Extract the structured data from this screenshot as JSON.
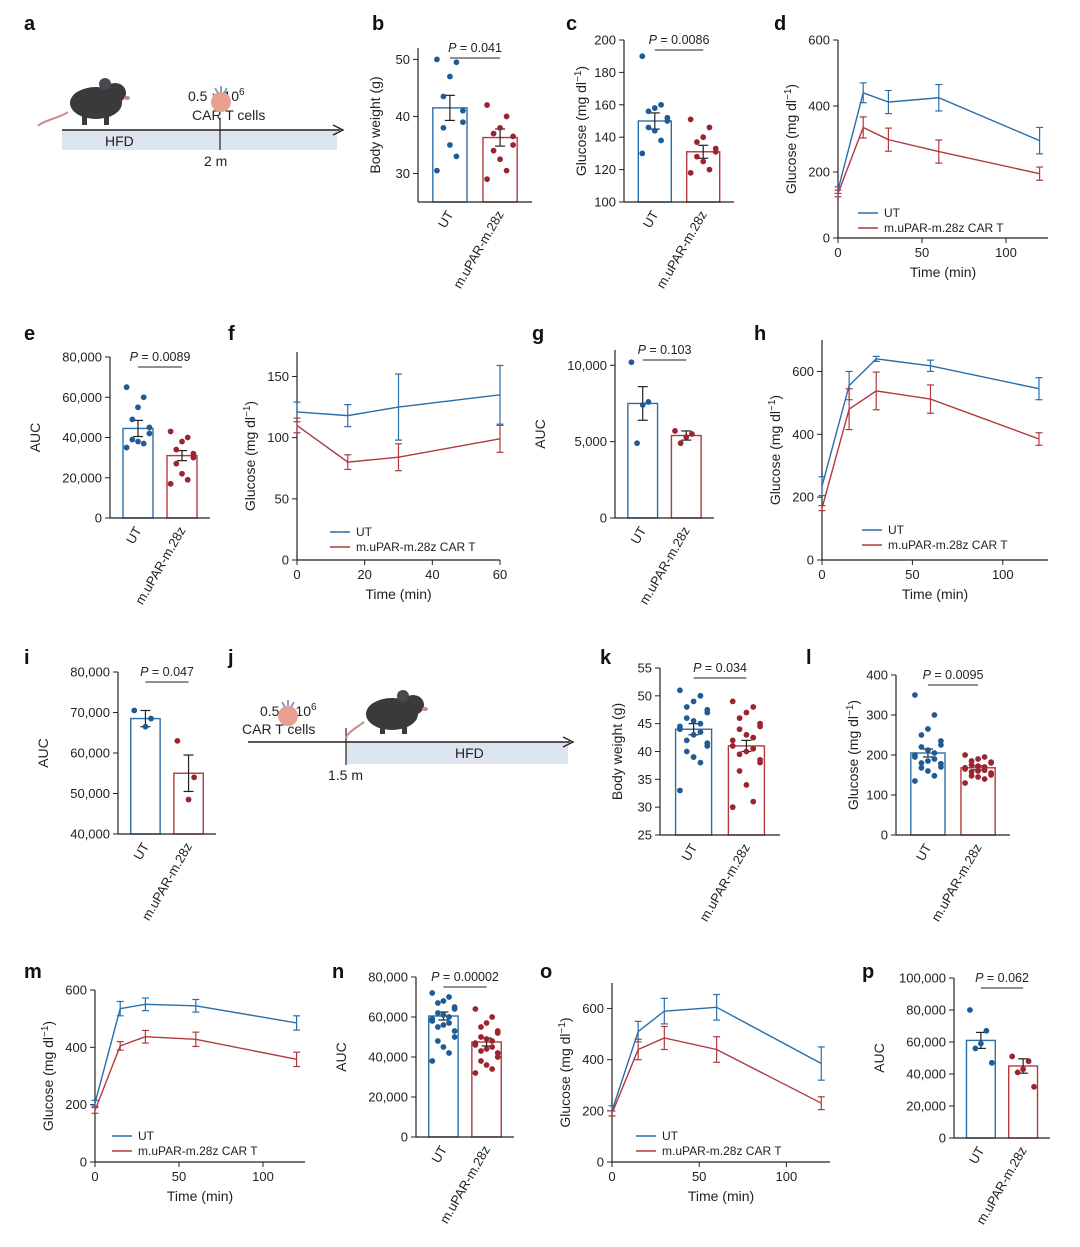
{
  "colors": {
    "ut": "#2a6ea9",
    "car": "#b13a3e",
    "ut_dot": "#1f5c96",
    "car_dot": "#9a2530",
    "band": "#dbe4ef",
    "text": "#222222"
  },
  "labels": {
    "a": "a",
    "b": "b",
    "c": "c",
    "d": "d",
    "e": "e",
    "f": "f",
    "g": "g",
    "h": "h",
    "i": "i",
    "j": "j",
    "k": "k",
    "l": "l",
    "m": "m",
    "n": "n",
    "o": "o",
    "p": "p"
  },
  "schematic_a": {
    "dose_base": "0.5 × 10",
    "dose_exp": "6",
    "cells": "CAR T cells",
    "diet": "HFD",
    "time": "2 m",
    "icons": [
      "mouse-icon",
      "car-t-cell-icon"
    ]
  },
  "schematic_j": {
    "dose_base": "0.5 × 10",
    "dose_exp": "6",
    "cells": "CAR T cells",
    "diet": "HFD",
    "time": "1.5 m",
    "icons": [
      "mouse-icon",
      "car-t-cell-icon"
    ]
  },
  "chart_data": [
    {
      "panel": "b",
      "type": "bar",
      "ylabel": "Body weight (g)",
      "ylim": [
        25,
        52
      ],
      "yticks": [
        30,
        40,
        50
      ],
      "categories": [
        "UT",
        "m.uPAR-m.28z"
      ],
      "values": [
        41.5,
        36.3
      ],
      "sem": [
        2.2,
        1.5
      ],
      "points": [
        [
          50,
          49.5,
          47,
          43.5,
          41,
          39,
          38,
          35,
          33,
          30.5
        ],
        [
          42,
          40,
          38,
          37,
          36.5,
          35,
          34,
          32.5,
          30.5,
          29
        ]
      ],
      "p_value": "P = 0.041"
    },
    {
      "panel": "c",
      "type": "bar",
      "ylabel": "Glucose (mg dl−1)",
      "ylim": [
        100,
        200
      ],
      "yticks": [
        100,
        120,
        140,
        160,
        180,
        200
      ],
      "categories": [
        "UT",
        "m.uPAR-m.28z"
      ],
      "values": [
        150,
        131
      ],
      "sem": [
        5,
        4
      ],
      "points": [
        [
          190,
          160,
          158,
          156,
          152,
          150,
          146,
          144,
          138,
          130
        ],
        [
          151,
          146,
          140,
          137,
          133,
          131,
          128,
          125,
          120,
          118
        ]
      ],
      "p_value": "P = 0.0086"
    },
    {
      "panel": "d",
      "type": "line",
      "xlabel": "Time (min)",
      "ylabel": "Glucose (mg dl−1)",
      "xlim": [
        0,
        125
      ],
      "ylim": [
        0,
        600
      ],
      "xticks": [
        0,
        50,
        100
      ],
      "yticks": [
        0,
        200,
        400,
        600
      ],
      "x": [
        0,
        15,
        30,
        60,
        120
      ],
      "series": [
        {
          "name": "UT",
          "values": [
            145,
            440,
            412,
            425,
            295
          ],
          "err": [
            10,
            30,
            35,
            40,
            40
          ]
        },
        {
          "name": "m.uPAR-m.28z CAR T",
          "values": [
            135,
            335,
            298,
            262,
            195
          ],
          "err": [
            10,
            32,
            35,
            35,
            20
          ]
        }
      ]
    },
    {
      "panel": "e",
      "type": "bar",
      "ylabel": "AUC",
      "ylim": [
        0,
        80000
      ],
      "yticks": [
        0,
        20000,
        40000,
        60000,
        80000
      ],
      "yticklabels": [
        "0",
        "20,000",
        "40,000",
        "60,000",
        "80,000"
      ],
      "categories": [
        "UT",
        "m.uPAR-m.28z"
      ],
      "values": [
        44500,
        31000
      ],
      "sem": [
        4000,
        2500
      ],
      "points": [
        [
          65000,
          60000,
          55000,
          49000,
          45000,
          42000,
          39000,
          38000,
          37000,
          35000
        ],
        [
          43000,
          40000,
          38000,
          34000,
          32000,
          30000,
          27000,
          22000,
          19000,
          17000
        ]
      ],
      "p_value": "P = 0.0089"
    },
    {
      "panel": "f",
      "type": "line",
      "xlabel": "Time (min)",
      "ylabel": "Glucose (mg dl−1)",
      "xlim": [
        0,
        60
      ],
      "ylim": [
        0,
        170
      ],
      "xticks": [
        0,
        20,
        40,
        60
      ],
      "yticks": [
        0,
        50,
        100,
        150
      ],
      "x": [
        0,
        15,
        30,
        60
      ],
      "series": [
        {
          "name": "UT",
          "values": [
            121,
            118,
            125,
            135
          ],
          "err": [
            8,
            9,
            27,
            24
          ]
        },
        {
          "name": "m.uPAR-m.28z CAR T",
          "values": [
            110,
            80,
            84,
            99
          ],
          "err": [
            6,
            6,
            11,
            11
          ]
        }
      ]
    },
    {
      "panel": "g",
      "type": "bar",
      "ylabel": "AUC",
      "ylim": [
        0,
        11000
      ],
      "yticks": [
        0,
        5000,
        10000
      ],
      "yticklabels": [
        "0",
        "5,000",
        "10,000"
      ],
      "categories": [
        "UT",
        "m.uPAR-m.28z"
      ],
      "values": [
        7500,
        5400
      ],
      "sem": [
        1100,
        300
      ],
      "points": [
        [
          10200,
          7600,
          7400,
          4900
        ],
        [
          5700,
          5500,
          5300,
          4900
        ]
      ],
      "p_value": "P = 0.103"
    },
    {
      "panel": "h",
      "type": "line",
      "xlabel": "Time (min)",
      "ylabel": "Glucose (mg dl−1)",
      "xlim": [
        0,
        125
      ],
      "ylim": [
        0,
        700
      ],
      "xticks": [
        0,
        50,
        100
      ],
      "yticks": [
        0,
        200,
        400,
        600
      ],
      "x": [
        0,
        15,
        30,
        60,
        120
      ],
      "series": [
        {
          "name": "UT",
          "values": [
            235,
            555,
            640,
            618,
            545
          ],
          "err": [
            30,
            45,
            8,
            18,
            35
          ]
        },
        {
          "name": "m.uPAR-m.28z CAR T",
          "values": [
            165,
            480,
            538,
            512,
            385
          ],
          "err": [
            8,
            65,
            60,
            45,
            20
          ]
        }
      ]
    },
    {
      "panel": "i",
      "type": "bar",
      "ylabel": "AUC",
      "ylim": [
        40000,
        80000
      ],
      "yticks": [
        40000,
        50000,
        60000,
        70000,
        80000
      ],
      "yticklabels": [
        "40,000",
        "50,000",
        "60,000",
        "70,000",
        "80,000"
      ],
      "categories": [
        "UT",
        "m.uPAR-m.28z"
      ],
      "values": [
        68500,
        55000
      ],
      "sem": [
        2000,
        4500
      ],
      "points": [
        [
          70500,
          68500,
          66500
        ],
        [
          63000,
          54000,
          48500
        ]
      ],
      "p_value": "P = 0.047"
    },
    {
      "panel": "k",
      "type": "bar",
      "ylabel": "Body weight (g)",
      "ylim": [
        25,
        55
      ],
      "yticks": [
        25,
        30,
        35,
        40,
        45,
        50,
        55
      ],
      "categories": [
        "UT",
        "m.uPAR-m.28z"
      ],
      "values": [
        44,
        41
      ],
      "sem": [
        1,
        1
      ],
      "points": [
        [
          51,
          50,
          49,
          48,
          47.5,
          47,
          46,
          45.5,
          45,
          44.5,
          44,
          43.5,
          43,
          42,
          41.5,
          41,
          40,
          39,
          38,
          33
        ],
        [
          49,
          48,
          47,
          46,
          45,
          44.5,
          44,
          43,
          42.5,
          42,
          41,
          40.5,
          40,
          39.5,
          38.5,
          38,
          36.5,
          34,
          31,
          30
        ]
      ],
      "p_value": "P = 0.034"
    },
    {
      "panel": "l",
      "type": "bar",
      "ylabel": "Glucose (mg dl−1)",
      "ylim": [
        0,
        400
      ],
      "yticks": [
        0,
        100,
        200,
        300,
        400
      ],
      "categories": [
        "UT",
        "m.uPAR-m.28z"
      ],
      "values": [
        205,
        168
      ],
      "sem": [
        10,
        5
      ],
      "points": [
        [
          350,
          300,
          265,
          250,
          235,
          225,
          220,
          212,
          205,
          200,
          195,
          190,
          185,
          180,
          178,
          170,
          168,
          160,
          148,
          135
        ],
        [
          200,
          195,
          190,
          185,
          182,
          180,
          175,
          172,
          170,
          168,
          165,
          162,
          160,
          158,
          155,
          150,
          148,
          145,
          140,
          130
        ]
      ],
      "p_value": "P = 0.0095"
    },
    {
      "panel": "m",
      "type": "line",
      "xlabel": "Time (min)",
      "ylabel": "Glucose (mg dl−1)",
      "xlim": [
        0,
        125
      ],
      "ylim": [
        0,
        600
      ],
      "xticks": [
        0,
        50,
        100
      ],
      "yticks": [
        0,
        200,
        400,
        600
      ],
      "x": [
        0,
        15,
        30,
        60,
        120
      ],
      "series": [
        {
          "name": "UT",
          "values": [
            205,
            535,
            550,
            545,
            485
          ],
          "err": [
            10,
            25,
            22,
            22,
            25
          ]
        },
        {
          "name": "m.uPAR-m.28z CAR T",
          "values": [
            180,
            405,
            437,
            428,
            358
          ],
          "err": [
            10,
            15,
            22,
            25,
            25
          ]
        }
      ]
    },
    {
      "panel": "n",
      "type": "bar",
      "ylabel": "AUC",
      "ylim": [
        0,
        80000
      ],
      "yticks": [
        0,
        20000,
        40000,
        60000,
        80000
      ],
      "yticklabels": [
        "0",
        "20,000",
        "40,000",
        "60,000",
        "80,000"
      ],
      "categories": [
        "UT",
        "m.uPAR-m.28z"
      ],
      "values": [
        60500,
        47500
      ],
      "sem": [
        2000,
        2000
      ],
      "points": [
        [
          72000,
          70000,
          68000,
          67000,
          65000,
          64000,
          62000,
          61000,
          60000,
          59000,
          58000,
          57000,
          56000,
          55000,
          53000,
          50000,
          48000,
          45000,
          42000,
          38000
        ],
        [
          64000,
          60000,
          57000,
          55000,
          53000,
          52000,
          50000,
          49000,
          48000,
          47000,
          46000,
          45000,
          44000,
          43000,
          42000,
          40000,
          38000,
          36000,
          34000,
          32000
        ]
      ],
      "p_value": "P = 0.00002"
    },
    {
      "panel": "o",
      "type": "line",
      "xlabel": "Time (min)",
      "ylabel": "Glucose (mg dl−1)",
      "xlim": [
        0,
        125
      ],
      "ylim": [
        0,
        700
      ],
      "xticks": [
        0,
        50,
        100
      ],
      "yticks": [
        0,
        200,
        400,
        600
      ],
      "x": [
        0,
        15,
        30,
        60,
        120
      ],
      "series": [
        {
          "name": "UT",
          "values": [
            200,
            510,
            590,
            605,
            385
          ],
          "err": [
            20,
            40,
            50,
            50,
            65
          ]
        },
        {
          "name": "m.uPAR-m.28z CAR T",
          "values": [
            190,
            440,
            485,
            440,
            230
          ],
          "err": [
            10,
            40,
            45,
            50,
            25
          ]
        }
      ]
    },
    {
      "panel": "p",
      "type": "bar",
      "ylabel": "AUC",
      "ylim": [
        0,
        100000
      ],
      "yticks": [
        0,
        20000,
        40000,
        60000,
        80000,
        100000
      ],
      "yticklabels": [
        "0",
        "20,000",
        "40,000",
        "60,000",
        "80,000",
        "100,000"
      ],
      "categories": [
        "UT",
        "m.uPAR-m.28z"
      ],
      "values": [
        61000,
        45000
      ],
      "sem": [
        5000,
        4500
      ],
      "points": [
        [
          80000,
          67000,
          59000,
          56000,
          47000
        ],
        [
          51000,
          48000,
          43000,
          41000,
          32000
        ]
      ],
      "p_value": "P = 0.062"
    }
  ]
}
